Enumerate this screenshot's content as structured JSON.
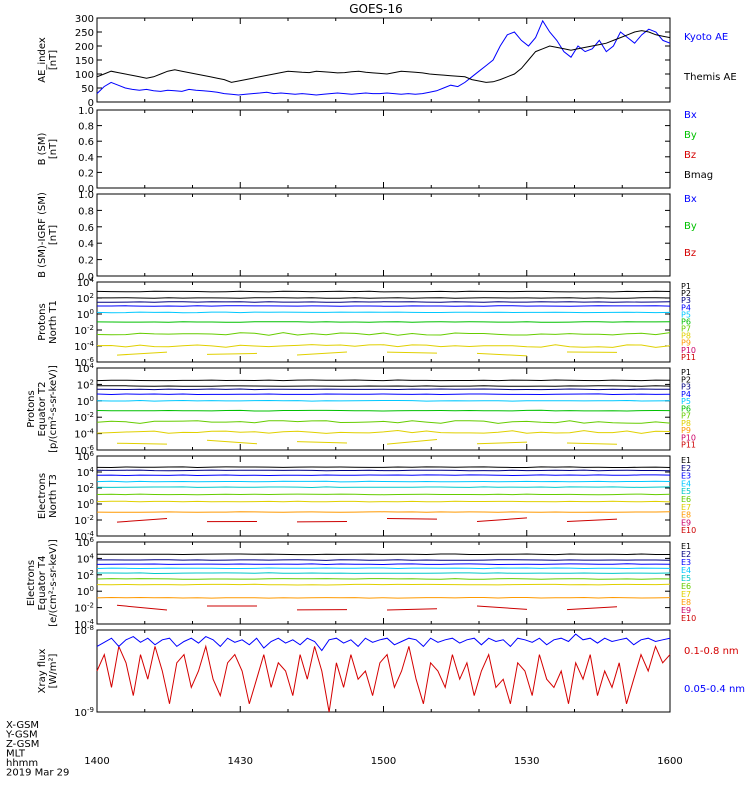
{
  "title": "GOES-16",
  "x_ticks": [
    "1400",
    "1430",
    "1500",
    "1530",
    "1600"
  ],
  "footer": {
    "rows": [
      "X-GSM",
      "Y-GSM",
      "Z-GSM",
      "MLT",
      "hhmm",
      "2019 Mar 29"
    ]
  },
  "colors": {
    "black": "#000000",
    "blue": "#0000ff",
    "green": "#00c000",
    "red": "#d40000",
    "cyan": "#00c8ff",
    "teal": "#00c8c8",
    "lime": "#66cc00",
    "yellow": "#e0d000",
    "orange": "#ff9900",
    "purple": "#000080",
    "magenta": "#cc0066",
    "darkred": "#cc0000"
  },
  "chart_data": [
    {
      "id": "ae",
      "type": "line",
      "ylabel": [
        "AE_index",
        "[nT]"
      ],
      "yticks": [
        "0",
        "50",
        "100",
        "150",
        "200",
        "250",
        "300"
      ],
      "ylim": [
        0,
        300
      ],
      "series": [
        {
          "name": "Kyoto AE",
          "color": "#0000ff",
          "values": [
            30,
            55,
            70,
            60,
            50,
            45,
            42,
            45,
            40,
            38,
            42,
            40,
            38,
            45,
            42,
            40,
            38,
            35,
            30,
            28,
            25,
            28,
            30,
            32,
            35,
            30,
            32,
            30,
            28,
            30,
            28,
            25,
            28,
            30,
            32,
            30,
            28,
            30,
            32,
            30,
            30,
            32,
            30,
            28,
            30,
            28,
            30,
            35,
            40,
            50,
            60,
            55,
            70,
            90,
            110,
            130,
            150,
            200,
            240,
            250,
            220,
            200,
            230,
            290,
            250,
            220,
            180,
            160,
            200,
            180,
            190,
            220,
            180,
            200,
            250,
            230,
            210,
            240,
            260,
            250,
            220,
            210
          ]
        },
        {
          "name": "Themis AE",
          "color": "#000000",
          "values": [
            90,
            100,
            110,
            105,
            100,
            95,
            90,
            85,
            90,
            100,
            110,
            115,
            110,
            105,
            100,
            95,
            90,
            85,
            80,
            70,
            75,
            80,
            85,
            90,
            95,
            100,
            105,
            110,
            108,
            106,
            105,
            110,
            108,
            106,
            104,
            105,
            108,
            110,
            106,
            104,
            102,
            100,
            105,
            110,
            108,
            106,
            104,
            100,
            98,
            96,
            94,
            92,
            90,
            80,
            75,
            70,
            72,
            80,
            90,
            100,
            120,
            150,
            180,
            190,
            200,
            195,
            190,
            185,
            190,
            195,
            200,
            205,
            210,
            220,
            230,
            240,
            250,
            255,
            250,
            240,
            235,
            230
          ]
        }
      ],
      "legend": [
        "Kyoto AE",
        "Themis AE"
      ]
    },
    {
      "id": "bsm",
      "type": "line",
      "ylabel": [
        "B (SM)",
        "[nT]"
      ],
      "yticks": [
        "0.0",
        "0.2",
        "0.4",
        "0.6",
        "0.8",
        "1.0"
      ],
      "ylim": [
        0,
        1
      ],
      "series": [],
      "legend": [
        "Bx",
        "By",
        "Bz",
        "Bmag"
      ]
    },
    {
      "id": "bigrf",
      "type": "line",
      "ylabel": [
        "B (SM)-IGRF (SM)",
        "[nT]"
      ],
      "yticks": [
        "0.0",
        "0.2",
        "0.4",
        "0.6",
        "0.8",
        "1.0"
      ],
      "ylim": [
        0,
        1
      ],
      "series": [],
      "legend": [
        "Bx",
        "By",
        "Bz"
      ]
    },
    {
      "id": "pnorth",
      "type": "line",
      "ylabel": [
        "Protons",
        "North T1"
      ],
      "log": true,
      "yticks": [
        "10^-6",
        "10^-4",
        "10^-2",
        "10^0",
        "10^2",
        "10^4"
      ],
      "ylim": [
        -6,
        4
      ],
      "series": [
        {
          "name": "P1",
          "color": "#000000",
          "level": 2.8
        },
        {
          "name": "P2",
          "color": "#000000",
          "level": 2.0
        },
        {
          "name": "P3",
          "color": "#000080",
          "level": 1.5
        },
        {
          "name": "P4",
          "color": "#0000ff",
          "level": 1.0
        },
        {
          "name": "P5",
          "color": "#00c8ff",
          "level": 0.2
        },
        {
          "name": "P6",
          "color": "#00c000",
          "level": -1.0
        },
        {
          "name": "P7",
          "color": "#66cc00",
          "level": -2.5
        },
        {
          "name": "P8",
          "color": "#e0d000",
          "level": -4.0
        },
        {
          "name": "P9",
          "color": "#ff9900"
        },
        {
          "name": "P10",
          "color": "#cc0066"
        },
        {
          "name": "P11",
          "color": "#cc0000"
        }
      ]
    },
    {
      "id": "peq",
      "type": "line",
      "ylabel": [
        "Protons",
        "Equator T2",
        "[p/(cm²-s-sr-keV)]"
      ],
      "log": true,
      "yticks": [
        "10^-6",
        "10^-4",
        "10^-2",
        "10^0",
        "10^2",
        "10^4"
      ],
      "ylim": [
        -6,
        4
      ],
      "series": [
        {
          "name": "P1",
          "color": "#000000",
          "level": 2.5
        },
        {
          "name": "P2",
          "color": "#000000",
          "level": 1.8
        },
        {
          "name": "P3",
          "color": "#000080",
          "level": 1.4
        },
        {
          "name": "P4",
          "color": "#0000ff",
          "level": 0.8
        },
        {
          "name": "P5",
          "color": "#00c8ff",
          "level": 0.0
        },
        {
          "name": "P6",
          "color": "#00c000",
          "level": -1.2
        },
        {
          "name": "P7",
          "color": "#66cc00",
          "level": -2.6
        },
        {
          "name": "P8",
          "color": "#e0d000",
          "level": -3.8
        },
        {
          "name": "P9",
          "color": "#ff9900"
        },
        {
          "name": "P10",
          "color": "#cc0066"
        },
        {
          "name": "P11",
          "color": "#cc0000"
        }
      ]
    },
    {
      "id": "enorth",
      "type": "line",
      "ylabel": [
        "Electrons",
        "North T3"
      ],
      "log": true,
      "yticks": [
        "10^-4",
        "10^-2",
        "10^0",
        "10^2",
        "10^4",
        "10^6"
      ],
      "ylim": [
        -4,
        6
      ],
      "series": [
        {
          "name": "E1",
          "color": "#000000",
          "level": 4.6
        },
        {
          "name": "E2",
          "color": "#000080",
          "level": 4.2
        },
        {
          "name": "E3",
          "color": "#0000ff",
          "level": 3.6
        },
        {
          "name": "E4",
          "color": "#00c8ff",
          "level": 2.8
        },
        {
          "name": "E5",
          "color": "#00c8c8",
          "level": 2.1
        },
        {
          "name": "E6",
          "color": "#66cc00",
          "level": 1.2
        },
        {
          "name": "E7",
          "color": "#e0d000",
          "level": 0.3
        },
        {
          "name": "E8",
          "color": "#ff9900",
          "level": -1.0
        },
        {
          "name": "E9",
          "color": "#cc0066"
        },
        {
          "name": "E10",
          "color": "#cc0000"
        }
      ]
    },
    {
      "id": "eeq",
      "type": "line",
      "ylabel": [
        "Electrons",
        "Equator T4",
        "[e/(cm²-s-sr-keV)]"
      ],
      "log": true,
      "yticks": [
        "10^-4",
        "10^-2",
        "10^0",
        "10^2",
        "10^4",
        "10^6"
      ],
      "ylim": [
        -4,
        6
      ],
      "series": [
        {
          "name": "E1",
          "color": "#000000",
          "level": 4.5
        },
        {
          "name": "E2",
          "color": "#000080",
          "level": 3.8
        },
        {
          "name": "E3",
          "color": "#0000ff",
          "level": 3.3
        },
        {
          "name": "E4",
          "color": "#00c8ff",
          "level": 2.8
        },
        {
          "name": "E5",
          "color": "#00c8c8",
          "level": 2.2
        },
        {
          "name": "E6",
          "color": "#66cc00",
          "level": 1.5
        },
        {
          "name": "E7",
          "color": "#e0d000",
          "level": 0.8
        },
        {
          "name": "E8",
          "color": "#ff9900",
          "level": -0.8
        },
        {
          "name": "E9",
          "color": "#cc0066"
        },
        {
          "name": "E10",
          "color": "#cc0000"
        }
      ]
    },
    {
      "id": "xray",
      "type": "line",
      "ylabel": [
        "Xray flux",
        "[W/m²]"
      ],
      "log": true,
      "yticks": [
        "10^-9",
        "10^-8"
      ],
      "ylim": [
        -9,
        -8
      ],
      "series": [
        {
          "name": "0.1-0.8 nm",
          "color": "#d40000",
          "values": [
            -8.5,
            -8.3,
            -8.7,
            -8.2,
            -8.4,
            -8.8,
            -8.3,
            -8.6,
            -8.2,
            -8.5,
            -8.9,
            -8.4,
            -8.3,
            -8.7,
            -8.5,
            -8.2,
            -8.6,
            -8.8,
            -8.4,
            -8.3,
            -8.5,
            -8.9,
            -8.6,
            -8.3,
            -8.7,
            -8.4,
            -8.5,
            -8.8,
            -8.3,
            -8.6,
            -8.2,
            -8.5,
            -9.0,
            -8.4,
            -8.7,
            -8.3,
            -8.6,
            -8.5,
            -8.8,
            -8.4,
            -8.3,
            -8.7,
            -8.5,
            -8.2,
            -8.6,
            -8.9,
            -8.4,
            -8.5,
            -8.7,
            -8.3,
            -8.6,
            -8.4,
            -8.8,
            -8.5,
            -8.3,
            -8.7,
            -8.6,
            -8.9,
            -8.4,
            -8.5,
            -8.8,
            -8.3,
            -8.6,
            -8.7,
            -8.5,
            -8.9,
            -8.4,
            -8.6,
            -8.3,
            -8.8,
            -8.5,
            -8.7,
            -8.4,
            -8.9,
            -8.6,
            -8.3,
            -8.5,
            -8.2,
            -8.4,
            -8.3
          ]
        },
        {
          "name": "0.05-0.4 nm",
          "color": "#0000ff",
          "values": [
            -8.2,
            -8.15,
            -8.1,
            -8.2,
            -8.12,
            -8.08,
            -8.15,
            -8.1,
            -8.18,
            -8.12,
            -8.1,
            -8.2,
            -8.14,
            -8.1,
            -8.16,
            -8.08,
            -8.12,
            -8.2,
            -8.1,
            -8.15,
            -8.12,
            -8.18,
            -8.1,
            -8.22,
            -8.14,
            -8.1,
            -8.16,
            -8.12,
            -8.18,
            -8.1,
            -8.14,
            -8.25,
            -8.12,
            -8.1,
            -8.16,
            -8.12,
            -8.2,
            -8.1,
            -8.15,
            -8.12,
            -8.1,
            -8.18,
            -8.14,
            -8.1,
            -8.12,
            -8.2,
            -8.1,
            -8.15,
            -8.12,
            -8.1,
            -8.16,
            -8.12,
            -8.1,
            -8.18,
            -8.1,
            -8.14,
            -8.12,
            -8.2,
            -8.1,
            -8.12,
            -8.15,
            -8.1,
            -8.18,
            -8.12,
            -8.1,
            -8.14,
            -8.05,
            -8.12,
            -8.1,
            -8.16,
            -8.1,
            -8.14,
            -8.12,
            -8.1,
            -8.18,
            -8.12,
            -8.1,
            -8.14,
            -8.12,
            -8.1
          ]
        }
      ],
      "legend": [
        "0.1-0.8 nm",
        "0.05-0.4 nm"
      ]
    }
  ]
}
